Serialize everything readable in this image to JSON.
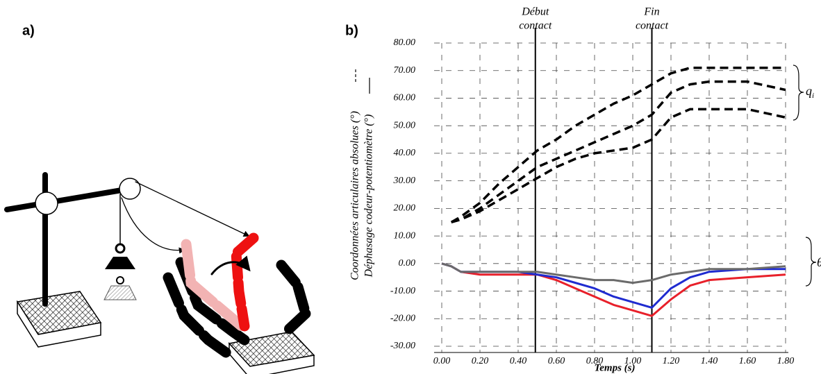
{
  "panel_a_label": "a)",
  "chart_data": {
    "type": "line",
    "panel_label": "b)",
    "xlabel": "Temps (s)",
    "ylabel": [
      "Coordonnées articulaires absolues (°)",
      "Déphasage codeur-potentiomètre (°)"
    ],
    "x": [
      0,
      0.05,
      0.1,
      0.2,
      0.3,
      0.4,
      0.5,
      0.6,
      0.7,
      0.8,
      0.9,
      1.0,
      1.1,
      1.2,
      1.3,
      1.4,
      1.6,
      1.8
    ],
    "series": [
      {
        "color": "#000000",
        "dashed": true,
        "values": [
          null,
          15,
          17,
          22,
          29,
          35,
          41,
          45,
          50,
          54,
          58,
          61,
          65,
          69,
          71,
          71,
          71,
          71
        ]
      },
      {
        "color": "#000000",
        "dashed": true,
        "values": [
          null,
          15,
          16,
          20,
          25,
          30,
          35,
          38,
          41,
          44,
          47,
          50,
          54,
          62,
          65,
          66,
          66,
          63
        ]
      },
      {
        "color": "#000000",
        "dashed": true,
        "values": [
          null,
          15,
          16,
          19,
          23,
          27,
          31,
          35,
          38,
          40,
          41,
          42,
          45,
          53,
          56,
          56,
          56,
          53
        ]
      },
      {
        "color": "#e8202a",
        "dashed": false,
        "values": [
          0,
          -1,
          -3,
          -4,
          -4,
          -4,
          -4,
          -6,
          -9,
          -12,
          -15,
          -17,
          -19,
          -13,
          -8,
          -6,
          -5,
          -4
        ]
      },
      {
        "color": "#1f2bd0",
        "dashed": false,
        "values": [
          0,
          -1,
          -3,
          -3,
          -3,
          -3,
          -4,
          -5,
          -7,
          -9,
          -12,
          -14,
          -16,
          -9,
          -5,
          -3,
          -2,
          -2
        ]
      },
      {
        "color": "#6b6b6b",
        "dashed": false,
        "values": [
          0,
          -1,
          -3,
          -3,
          -3,
          -3,
          -3,
          -4,
          -5,
          -6,
          -6,
          -7,
          -6,
          -4,
          -3,
          -2,
          -2,
          -1
        ]
      }
    ],
    "annotations": [
      {
        "x": 0.49,
        "lines": [
          "Début",
          "contact"
        ]
      },
      {
        "x": 1.1,
        "lines": [
          "Fin",
          "contact"
        ]
      }
    ],
    "brace_labels": [
      {
        "base": "q",
        "sub": "i"
      },
      {
        "base": "θ",
        "sub": "i"
      }
    ],
    "xlim": [
      0,
      1.8
    ],
    "ylim": [
      -30,
      80
    ],
    "xticks": [
      {
        "value": 0,
        "label": "0.00"
      },
      {
        "value": 0.2,
        "label": "0.20"
      },
      {
        "value": 0.4,
        "label": "0.40"
      },
      {
        "value": 0.6,
        "label": "0.60"
      },
      {
        "value": 0.8,
        "label": "0.80"
      },
      {
        "value": 1.0,
        "label": "1.00"
      },
      {
        "value": 1.2,
        "label": "1.20"
      },
      {
        "value": 1.4,
        "label": "1.40"
      },
      {
        "value": 1.6,
        "label": "1.60"
      },
      {
        "value": 1.8,
        "label": "1.80"
      }
    ],
    "yticks": [
      {
        "value": -30,
        "label": "-30.00"
      },
      {
        "value": -20,
        "label": "-20.00"
      },
      {
        "value": -10,
        "label": "-10.00"
      },
      {
        "value": 0,
        "label": "0.00"
      },
      {
        "value": 10,
        "label": "10.00"
      },
      {
        "value": 20,
        "label": "20.00"
      },
      {
        "value": 30,
        "label": "30.00"
      },
      {
        "value": 40,
        "label": "40.00"
      },
      {
        "value": 50,
        "label": "50.00"
      },
      {
        "value": 60,
        "label": "60.00"
      },
      {
        "value": 70,
        "label": "70.00"
      },
      {
        "value": 80,
        "label": "80.00"
      }
    ],
    "grid": true
  }
}
